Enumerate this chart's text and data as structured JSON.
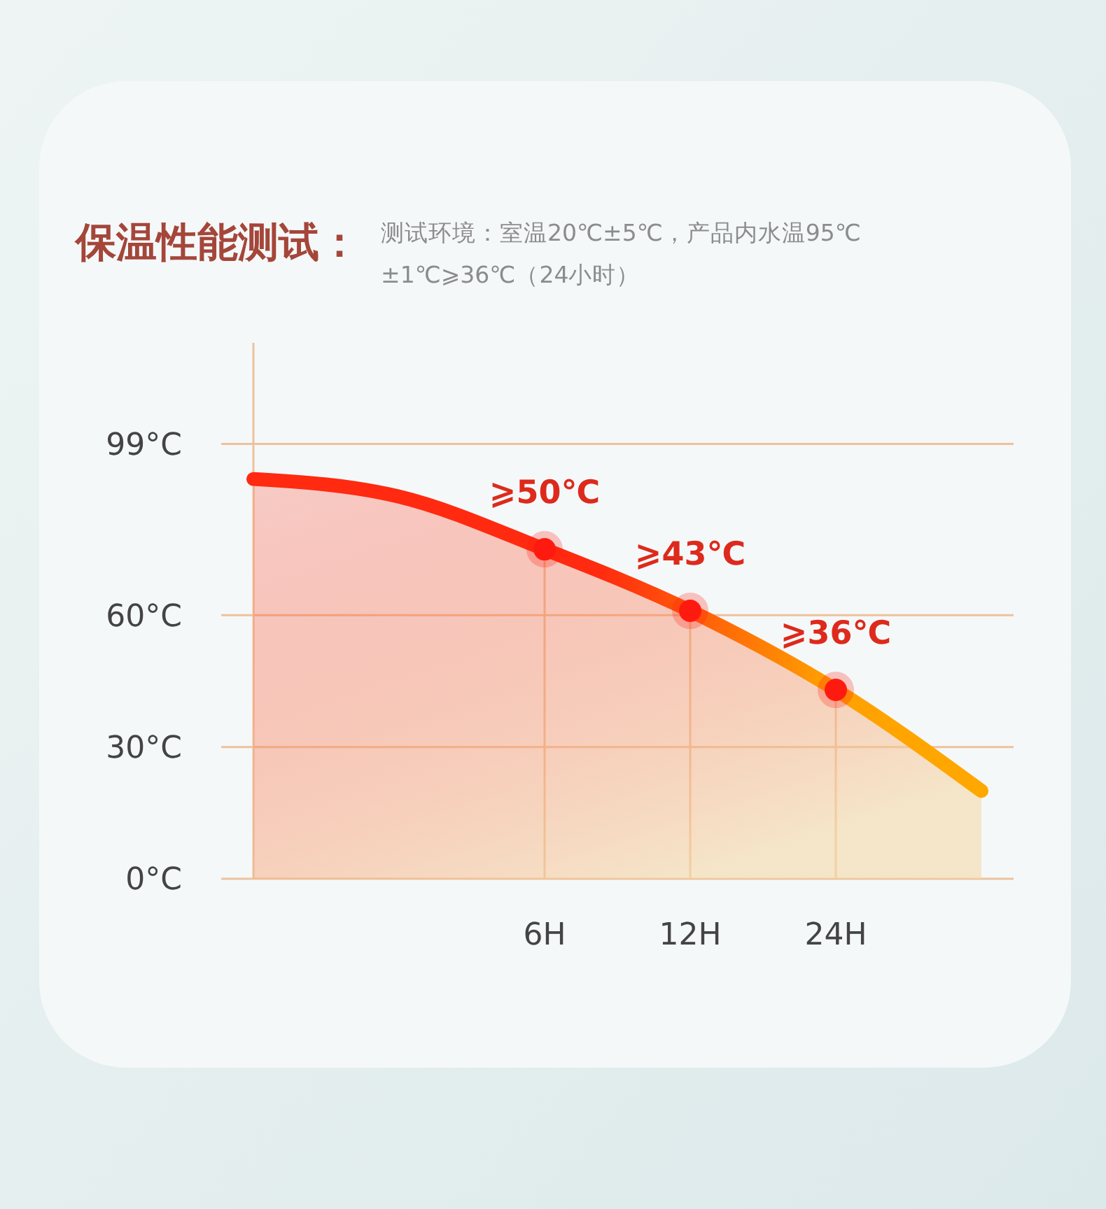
{
  "chart_data": {
    "type": "area",
    "title": "保温性能测试：",
    "subtitle": "测试环境：室温20℃±5℃，产品内水温95℃±1℃⩾36℃（24小时）",
    "categories": [
      null,
      null,
      "6H",
      "12H",
      "24H",
      null
    ],
    "ylim": [
      0,
      122
    ],
    "yticks": [
      {
        "value": 0,
        "label": "0°C"
      },
      {
        "value": 30,
        "label": "30°C"
      },
      {
        "value": 60,
        "label": "60°C"
      },
      {
        "value": 99,
        "label": "99°C"
      }
    ],
    "grid": true,
    "series": [
      {
        "color": "#ff2a10",
        "values": [
          91,
          87,
          75,
          61,
          43,
          20
        ]
      },
      {
        "type": "scatter",
        "color": "#ff1a10",
        "x": [
          "6H",
          "12H",
          "24H"
        ],
        "values": [
          75,
          61,
          43
        ]
      }
    ],
    "annotations": [
      {
        "text": "⩾50℃",
        "x": "6H",
        "y": 75
      },
      {
        "text": "⩾43℃",
        "x": "12H",
        "y": 61
      },
      {
        "text": "⩾36℃",
        "x": "24H",
        "y": 43
      }
    ]
  }
}
